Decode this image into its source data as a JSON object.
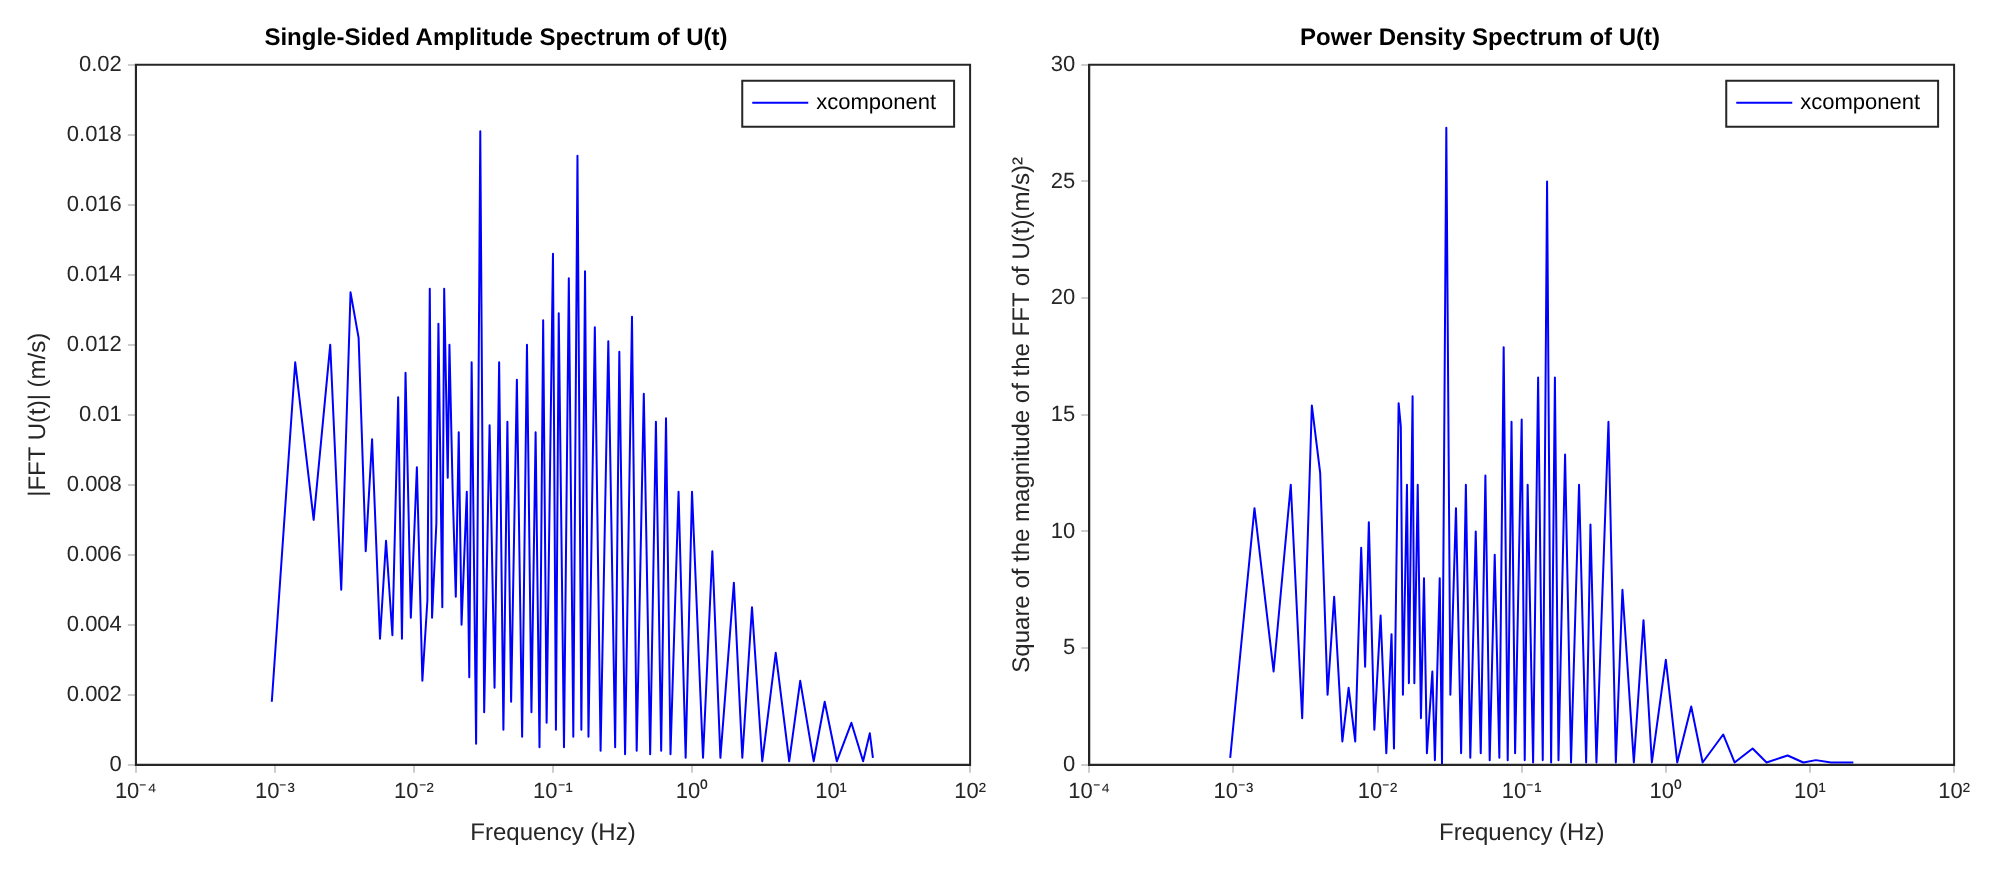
{
  "chart_data": [
    {
      "type": "line",
      "title": "Single-Sided Amplitude Spectrum of U(t)",
      "xlabel": "Frequency (Hz)",
      "ylabel": "|FFT U(t)| (m/s)",
      "log": "x",
      "legend": "top right",
      "grid": false,
      "xlim": [
        0.0001,
        100
      ],
      "xticks": [
        {
          "value": 0.0001,
          "label": "10⁻⁴"
        },
        {
          "value": 0.001,
          "label": "10⁻³"
        },
        {
          "value": 0.01,
          "label": "10⁻²"
        },
        {
          "value": 0.1,
          "label": "10⁻¹"
        },
        {
          "value": 1,
          "label": "10⁰"
        },
        {
          "value": 10,
          "label": "10¹"
        },
        {
          "value": 100,
          "label": "10²"
        }
      ],
      "ylim": [
        0,
        0.02
      ],
      "yticks": [
        0,
        0.002,
        0.004,
        0.006,
        0.008,
        0.01,
        0.012,
        0.014,
        0.016,
        0.018,
        0.02
      ],
      "x": [
        0.00095,
        0.0014,
        0.0019,
        0.0025,
        0.003,
        0.0035,
        0.004,
        0.0045,
        0.005,
        0.0057,
        0.0063,
        0.007,
        0.0077,
        0.0082,
        0.0087,
        0.0095,
        0.0105,
        0.0115,
        0.0125,
        0.013,
        0.0135,
        0.0145,
        0.015,
        0.016,
        0.0165,
        0.0175,
        0.018,
        0.019,
        0.02,
        0.021,
        0.022,
        0.024,
        0.025,
        0.026,
        0.028,
        0.03,
        0.032,
        0.035,
        0.038,
        0.041,
        0.044,
        0.047,
        0.05,
        0.055,
        0.06,
        0.065,
        0.07,
        0.075,
        0.08,
        0.085,
        0.09,
        0.1,
        0.105,
        0.11,
        0.12,
        0.13,
        0.14,
        0.15,
        0.16,
        0.17,
        0.18,
        0.2,
        0.22,
        0.25,
        0.28,
        0.3,
        0.33,
        0.37,
        0.4,
        0.45,
        0.5,
        0.55,
        0.6,
        0.65,
        0.7,
        0.8,
        0.9,
        1,
        1.2,
        1.4,
        1.6,
        2,
        2.3,
        2.7,
        3.2,
        4,
        5,
        6,
        7.5,
        9,
        11,
        14,
        17,
        19,
        20
      ],
      "series": [
        {
          "name": "xcomponent",
          "color": "#0000ff",
          "values": [
            0.0018,
            0.0115,
            0.007,
            0.012,
            0.005,
            0.0135,
            0.0122,
            0.0061,
            0.0093,
            0.0036,
            0.0064,
            0.0037,
            0.0105,
            0.0036,
            0.0112,
            0.0042,
            0.0085,
            0.0024,
            0.0047,
            0.0136,
            0.0042,
            0.0069,
            0.0126,
            0.0045,
            0.0136,
            0.0082,
            0.012,
            0.0078,
            0.0048,
            0.0095,
            0.004,
            0.0078,
            0.0025,
            0.0115,
            0.0006,
            0.0181,
            0.0015,
            0.0097,
            0.0022,
            0.0115,
            0.001,
            0.0098,
            0.0018,
            0.011,
            0.0008,
            0.012,
            0.0015,
            0.0095,
            0.0005,
            0.0127,
            0.0012,
            0.0146,
            0.001,
            0.0129,
            0.0005,
            0.0139,
            0.0008,
            0.0174,
            0.001,
            0.0141,
            0.0008,
            0.0125,
            0.0004,
            0.0121,
            0.0005,
            0.0118,
            0.0003,
            0.0128,
            0.0004,
            0.0106,
            0.0003,
            0.0098,
            0.0004,
            0.0099,
            0.0003,
            0.0078,
            0.0002,
            0.0078,
            0.0002,
            0.0061,
            0.0002,
            0.0052,
            0.0002,
            0.0045,
            0.0001,
            0.0032,
            0.0001,
            0.0024,
            0.0001,
            0.0018,
            0.0001,
            0.0012,
            0.0001,
            0.0009,
            0.0002
          ]
        }
      ]
    },
    {
      "type": "line",
      "title": "Power Density Spectrum of U(t)",
      "xlabel": "Frequency (Hz)",
      "ylabel": "Square of the magnitude of the FFT of U(t)(m/s)²",
      "log": "x",
      "legend": "top right",
      "grid": false,
      "xlim": [
        0.0001,
        100
      ],
      "xticks": [
        {
          "value": 0.0001,
          "label": "10⁻⁴"
        },
        {
          "value": 0.001,
          "label": "10⁻³"
        },
        {
          "value": 0.01,
          "label": "10⁻²"
        },
        {
          "value": 0.1,
          "label": "10⁻¹"
        },
        {
          "value": 1,
          "label": "10⁰"
        },
        {
          "value": 10,
          "label": "10¹"
        },
        {
          "value": 100,
          "label": "10²"
        }
      ],
      "ylim": [
        0,
        30
      ],
      "yticks": [
        0,
        5,
        10,
        15,
        20,
        25,
        30
      ],
      "x": [
        0.00095,
        0.0014,
        0.0019,
        0.0025,
        0.003,
        0.0035,
        0.004,
        0.0045,
        0.005,
        0.0057,
        0.0063,
        0.007,
        0.0077,
        0.0082,
        0.0087,
        0.0095,
        0.0105,
        0.0115,
        0.0125,
        0.013,
        0.014,
        0.0145,
        0.015,
        0.016,
        0.0165,
        0.0175,
        0.018,
        0.019,
        0.02,
        0.021,
        0.022,
        0.024,
        0.025,
        0.027,
        0.028,
        0.03,
        0.032,
        0.035,
        0.038,
        0.041,
        0.044,
        0.048,
        0.052,
        0.056,
        0.06,
        0.065,
        0.07,
        0.075,
        0.08,
        0.085,
        0.09,
        0.1,
        0.105,
        0.11,
        0.12,
        0.13,
        0.14,
        0.15,
        0.16,
        0.17,
        0.18,
        0.2,
        0.22,
        0.25,
        0.28,
        0.3,
        0.33,
        0.4,
        0.45,
        0.5,
        0.6,
        0.7,
        0.8,
        1,
        1.2,
        1.5,
        1.8,
        2.5,
        3,
        4,
        5,
        7,
        9,
        11,
        14,
        20
      ],
      "series": [
        {
          "name": "xcomponent",
          "color": "#0000ff",
          "values": [
            0.3,
            11,
            4,
            12,
            2,
            15.4,
            12.5,
            3,
            7.2,
            1,
            3.3,
            1,
            9.3,
            4.2,
            10.4,
            1.5,
            6.4,
            0.5,
            5.6,
            0.7,
            15.5,
            14.5,
            3,
            12,
            3.5,
            15.8,
            3.5,
            12,
            2,
            8,
            0.5,
            4,
            0.2,
            8,
            0,
            27.3,
            3,
            11,
            0.5,
            12,
            0.3,
            10,
            0.5,
            12.4,
            0.2,
            9,
            0.3,
            17.9,
            0.2,
            14.7,
            0.5,
            14.8,
            0.2,
            12,
            0.1,
            16.6,
            0.2,
            25,
            0.1,
            16.6,
            0.2,
            13.3,
            0.1,
            12,
            0.1,
            10.3,
            0.1,
            14.7,
            0.1,
            7.5,
            0.1,
            6.2,
            0.1,
            4.5,
            0.1,
            2.5,
            0.1,
            1.3,
            0.1,
            0.7,
            0.1,
            0.4,
            0.1,
            0.2,
            0.1,
            0.1
          ]
        }
      ]
    }
  ]
}
